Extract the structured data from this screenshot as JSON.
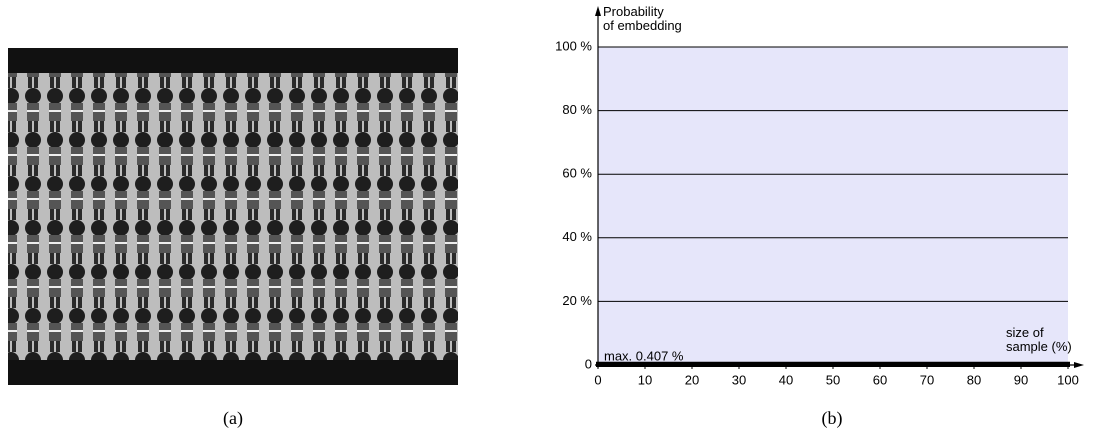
{
  "figure": {
    "captions": [
      "(a)",
      "(b)"
    ]
  },
  "chart_data": {
    "type": "area",
    "y_label": "Probability\nof embedding",
    "x_label": "size of\nsample (%)",
    "annotation": "max. 0.407 %",
    "x": [
      0,
      100
    ],
    "series": [
      {
        "color": "#000000",
        "values": [
          0.407,
          0.407
        ]
      }
    ],
    "background": "#e6e6fa",
    "xlim": [
      0,
      100
    ],
    "ylim": [
      0,
      100
    ],
    "xticks": [
      0,
      10,
      20,
      30,
      40,
      50,
      60,
      70,
      80,
      90,
      100
    ],
    "yticks": [
      0,
      {
        "value": 20,
        "label": "20 %"
      },
      {
        "value": 40,
        "label": "40 %"
      },
      {
        "value": 60,
        "label": "60 %"
      },
      {
        "value": 80,
        "label": "80 %"
      },
      {
        "value": 100,
        "label": "100 %"
      }
    ],
    "grid": true
  }
}
